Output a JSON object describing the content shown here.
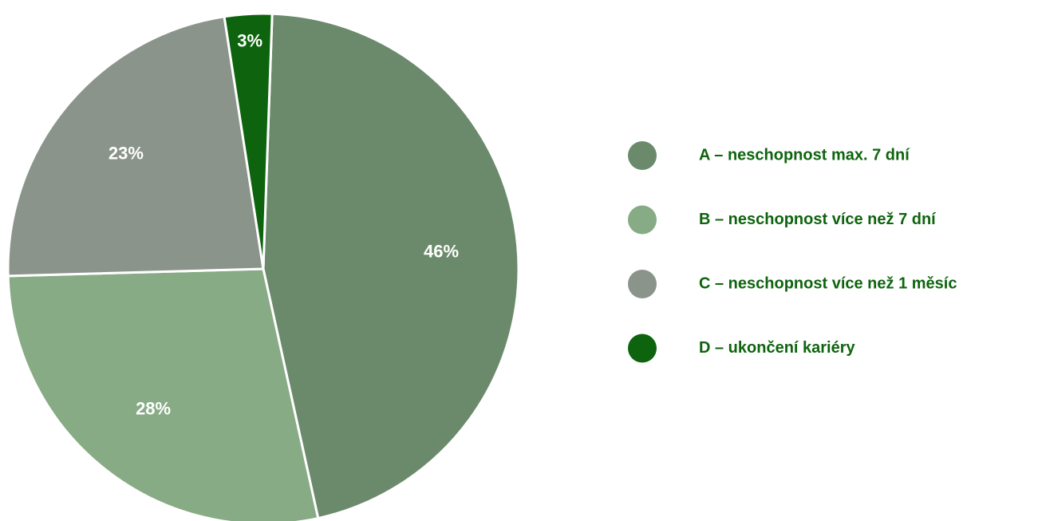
{
  "chart_data": {
    "type": "pie",
    "categories": [
      "A – neschopnost max. 7 dní",
      "B – neschopnost více než 7 dní",
      "C – neschopnost více než 1 měsíc",
      "D – ukončení kariéry"
    ],
    "values": [
      46,
      28,
      23,
      3
    ],
    "value_labels": [
      "46%",
      "28%",
      "23%",
      "3%"
    ],
    "colors": [
      "#6b8a6b",
      "#87ab84",
      "#8b948b",
      "#0e640e"
    ],
    "legend": "right"
  }
}
